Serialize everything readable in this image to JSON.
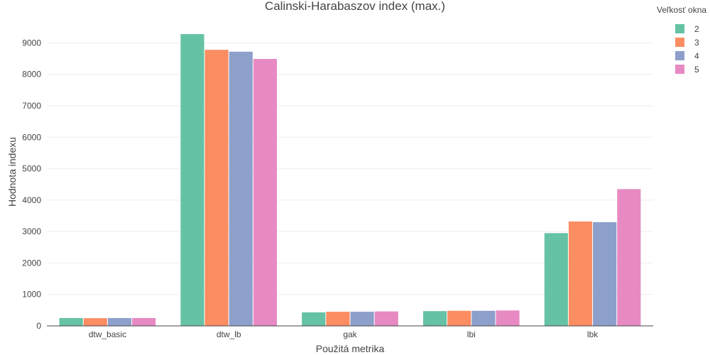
{
  "chart_data": {
    "type": "bar",
    "title": "Calinski-Harabaszov index (max.)",
    "xlabel": "Použitá metrika",
    "ylabel": "Hodnota indexu",
    "categories": [
      "dtw_basic",
      "dtw_lb",
      "gak",
      "lbi",
      "lbk"
    ],
    "ylim": [
      0,
      9800
    ],
    "yticks": [
      0,
      1000,
      2000,
      3000,
      4000,
      5000,
      6000,
      7000,
      8000,
      9000
    ],
    "grid": true,
    "legend": {
      "title": "Veľkosť okna",
      "position": "top-right"
    },
    "series": [
      {
        "name": "2",
        "color": "#66c2a5",
        "values": [
          250,
          9280,
          430,
          470,
          2950
        ]
      },
      {
        "name": "3",
        "color": "#fc8d62",
        "values": [
          245,
          8780,
          450,
          480,
          3320
        ]
      },
      {
        "name": "4",
        "color": "#8da0cb",
        "values": [
          250,
          8720,
          450,
          480,
          3300
        ]
      },
      {
        "name": "5",
        "color": "#e78ac3",
        "values": [
          250,
          8490,
          460,
          490,
          4350
        ]
      }
    ]
  }
}
